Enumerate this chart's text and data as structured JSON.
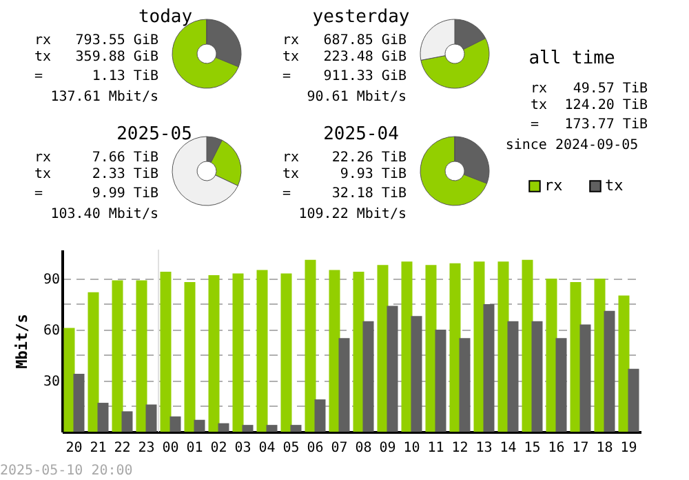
{
  "chart_data": [
    {
      "type": "donut",
      "title": "today",
      "categories": [
        null,
        null,
        null
      ],
      "values": [
        31.2,
        68.8,
        0
      ],
      "colors": [
        "#606060",
        "#93cf00",
        "#f0f0f0"
      ],
      "annotations": [
        "rx 793.55 GiB",
        "tx 359.88 GiB",
        "= 1.13 TiB",
        "137.61 Mbit/s"
      ]
    },
    {
      "type": "donut",
      "title": "yesterday",
      "categories": [
        null,
        null,
        null
      ],
      "values": [
        17.6,
        54.4,
        28
      ],
      "colors": [
        "#606060",
        "#93cf00",
        "#f0f0f0"
      ],
      "annotations": [
        "rx 687.85 GiB",
        "tx 223.48 GiB",
        "= 911.33 GiB",
        "90.61 Mbit/s"
      ]
    },
    {
      "type": "other",
      "title": "all time",
      "annotations": [
        "rx 49.57 TiB",
        "tx 124.20 TiB",
        "= 173.77 TiB",
        "since 2024-09-05"
      ]
    },
    {
      "type": "donut",
      "title": "2025-05",
      "categories": [
        null,
        null,
        null
      ],
      "values": [
        7.4,
        24.6,
        68
      ],
      "colors": [
        "#606060",
        "#93cf00",
        "#f0f0f0"
      ],
      "annotations": [
        "rx 7.66 TiB",
        "tx 2.33 TiB",
        "= 9.99 TiB",
        "103.40 Mbit/s"
      ]
    },
    {
      "type": "donut",
      "title": "2025-04",
      "categories": [
        null,
        null,
        null
      ],
      "values": [
        30.9,
        69.1,
        0
      ],
      "colors": [
        "#606060",
        "#93cf00",
        "#f0f0f0"
      ],
      "annotations": [
        "rx 22.26 TiB",
        "tx 9.93 TiB",
        "= 32.18 TiB",
        "109.22 Mbit/s"
      ]
    },
    {
      "type": "bar",
      "categories": [
        "20",
        "21",
        "22",
        "23",
        "00",
        "01",
        "02",
        "03",
        "04",
        "05",
        "06",
        "07",
        "08",
        "09",
        "10",
        "11",
        "12",
        "13",
        "14",
        "15",
        "16",
        "17",
        "18",
        "19"
      ],
      "series": [
        {
          "name": "rx",
          "color": "#93cf00",
          "values": [
            61,
            82,
            89,
            89,
            94,
            88,
            92,
            93,
            95,
            93,
            101,
            95,
            94,
            98,
            100,
            98,
            99,
            100,
            100,
            101,
            90,
            88,
            90,
            80
          ]
        },
        {
          "name": "tx",
          "color": "#606060",
          "values": [
            34,
            17,
            12,
            16,
            9,
            7,
            5,
            4,
            4,
            4,
            19,
            55,
            65,
            74,
            68,
            60,
            55,
            75,
            65,
            65,
            55,
            63,
            71,
            37
          ]
        }
      ],
      "ylabel": "Mbit/s",
      "ylim": [
        0,
        107
      ],
      "yticks": [
        {
          "value": 15,
          "label": null
        },
        30,
        {
          "value": 45,
          "label": null
        },
        60,
        {
          "value": 75,
          "label": null
        },
        90
      ],
      "grid": "y",
      "legend": "top right",
      "ref_lines": [
        {
          "axis": "x",
          "value": "00",
          "color": "#e0e0e0"
        }
      ],
      "annotations": [
        "2025-05-10 20:00"
      ]
    }
  ]
}
